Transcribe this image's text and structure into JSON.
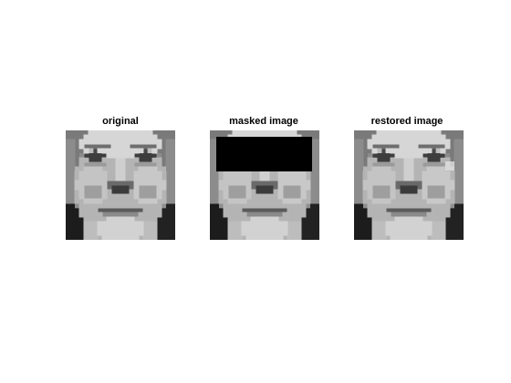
{
  "panels": [
    {
      "title": "original"
    },
    {
      "title": "masked image"
    },
    {
      "title": "restored image"
    }
  ],
  "colors": {
    "background": "#ffffff",
    "mask": "#000000"
  }
}
